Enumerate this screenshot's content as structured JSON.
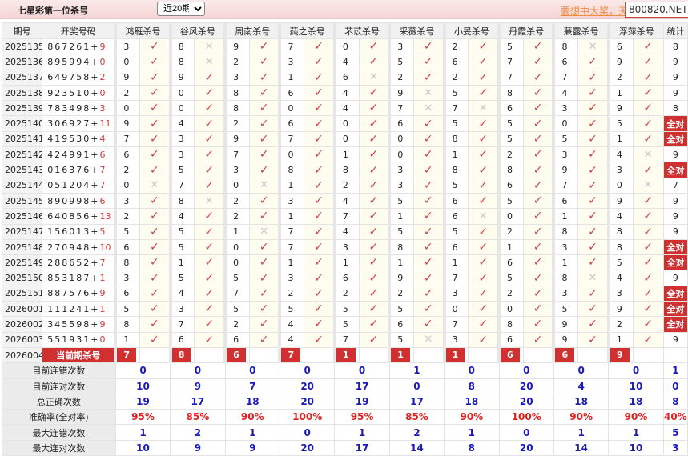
{
  "header": {
    "title": "七星彩第一位杀号",
    "period_select": "近20期",
    "promo": "要想中大奖，天",
    "site": "800820.NET"
  },
  "columns": {
    "issue": "期号",
    "draw": "开奖号码",
    "experts": [
      "鸿雁杀号",
      "谷风杀号",
      "周南杀号",
      "莼之杀号",
      "芣苡杀号",
      "采薇杀号",
      "小旻杀号",
      "丹霞杀号",
      "蒹露杀号",
      "浮萍杀号"
    ],
    "stats": "统计"
  },
  "rows": [
    {
      "issue": "2025135",
      "draw": "867261",
      "special": "9",
      "picks": [
        [
          3,
          1
        ],
        [
          8,
          0
        ],
        [
          9,
          1
        ],
        [
          7,
          1
        ],
        [
          0,
          1
        ],
        [
          3,
          1
        ],
        [
          2,
          1
        ],
        [
          5,
          1
        ],
        [
          8,
          0
        ],
        [
          6,
          1
        ]
      ],
      "stat": "8"
    },
    {
      "issue": "2025136",
      "draw": "895994",
      "special": "0",
      "picks": [
        [
          0,
          1
        ],
        [
          8,
          0
        ],
        [
          2,
          1
        ],
        [
          3,
          1
        ],
        [
          4,
          1
        ],
        [
          5,
          1
        ],
        [
          6,
          1
        ],
        [
          7,
          1
        ],
        [
          6,
          1
        ],
        [
          9,
          1
        ]
      ],
      "stat": "9"
    },
    {
      "issue": "2025137",
      "draw": "649758",
      "special": "2",
      "picks": [
        [
          9,
          1
        ],
        [
          9,
          1
        ],
        [
          3,
          1
        ],
        [
          1,
          1
        ],
        [
          6,
          0
        ],
        [
          2,
          1
        ],
        [
          2,
          1
        ],
        [
          7,
          1
        ],
        [
          7,
          1
        ],
        [
          2,
          1
        ]
      ],
      "stat": "9"
    },
    {
      "issue": "2025138",
      "draw": "923510",
      "special": "0",
      "picks": [
        [
          2,
          1
        ],
        [
          0,
          1
        ],
        [
          8,
          1
        ],
        [
          6,
          1
        ],
        [
          4,
          1
        ],
        [
          9,
          0
        ],
        [
          5,
          1
        ],
        [
          8,
          1
        ],
        [
          4,
          1
        ],
        [
          1,
          1
        ]
      ],
      "stat": "9"
    },
    {
      "issue": "2025139",
      "draw": "783498",
      "special": "3",
      "picks": [
        [
          0,
          1
        ],
        [
          0,
          1
        ],
        [
          8,
          1
        ],
        [
          0,
          1
        ],
        [
          4,
          1
        ],
        [
          7,
          0
        ],
        [
          7,
          0
        ],
        [
          6,
          1
        ],
        [
          3,
          1
        ],
        [
          9,
          1
        ]
      ],
      "stat": "8"
    },
    {
      "issue": "2025140",
      "draw": "306927",
      "special": "11",
      "picks": [
        [
          9,
          1
        ],
        [
          4,
          1
        ],
        [
          2,
          1
        ],
        [
          6,
          1
        ],
        [
          0,
          1
        ],
        [
          6,
          1
        ],
        [
          5,
          1
        ],
        [
          5,
          1
        ],
        [
          0,
          1
        ],
        [
          5,
          1
        ]
      ],
      "stat": "全对"
    },
    {
      "issue": "2025141",
      "draw": "419530",
      "special": "4",
      "picks": [
        [
          7,
          1
        ],
        [
          3,
          1
        ],
        [
          9,
          1
        ],
        [
          7,
          1
        ],
        [
          0,
          1
        ],
        [
          0,
          1
        ],
        [
          8,
          1
        ],
        [
          5,
          1
        ],
        [
          5,
          1
        ],
        [
          1,
          1
        ]
      ],
      "stat": "全对"
    },
    {
      "issue": "2025142",
      "draw": "424991",
      "special": "6",
      "picks": [
        [
          6,
          1
        ],
        [
          3,
          1
        ],
        [
          7,
          1
        ],
        [
          0,
          1
        ],
        [
          1,
          1
        ],
        [
          0,
          1
        ],
        [
          1,
          1
        ],
        [
          2,
          1
        ],
        [
          3,
          1
        ],
        [
          4,
          0
        ]
      ],
      "stat": "9"
    },
    {
      "issue": "2025143",
      "draw": "016376",
      "special": "7",
      "picks": [
        [
          2,
          1
        ],
        [
          5,
          1
        ],
        [
          3,
          1
        ],
        [
          8,
          1
        ],
        [
          8,
          1
        ],
        [
          3,
          1
        ],
        [
          8,
          1
        ],
        [
          8,
          1
        ],
        [
          9,
          1
        ],
        [
          3,
          1
        ]
      ],
      "stat": "全对"
    },
    {
      "issue": "2025144",
      "draw": "051204",
      "special": "7",
      "picks": [
        [
          0,
          0
        ],
        [
          7,
          1
        ],
        [
          0,
          0
        ],
        [
          1,
          1
        ],
        [
          2,
          1
        ],
        [
          3,
          1
        ],
        [
          5,
          1
        ],
        [
          6,
          1
        ],
        [
          7,
          1
        ],
        [
          0,
          0
        ]
      ],
      "stat": "7"
    },
    {
      "issue": "2025145",
      "draw": "890998",
      "special": "6",
      "picks": [
        [
          3,
          1
        ],
        [
          8,
          0
        ],
        [
          2,
          1
        ],
        [
          3,
          1
        ],
        [
          4,
          1
        ],
        [
          5,
          1
        ],
        [
          6,
          1
        ],
        [
          5,
          1
        ],
        [
          6,
          1
        ],
        [
          9,
          1
        ]
      ],
      "stat": "9"
    },
    {
      "issue": "2025146",
      "draw": "640856",
      "special": "13",
      "picks": [
        [
          2,
          1
        ],
        [
          4,
          1
        ],
        [
          2,
          1
        ],
        [
          1,
          1
        ],
        [
          7,
          1
        ],
        [
          1,
          1
        ],
        [
          6,
          0
        ],
        [
          0,
          1
        ],
        [
          1,
          1
        ],
        [
          4,
          1
        ]
      ],
      "stat": "9"
    },
    {
      "issue": "2025147",
      "draw": "156013",
      "special": "5",
      "picks": [
        [
          5,
          1
        ],
        [
          5,
          1
        ],
        [
          1,
          0
        ],
        [
          7,
          1
        ],
        [
          4,
          1
        ],
        [
          5,
          1
        ],
        [
          5,
          1
        ],
        [
          2,
          1
        ],
        [
          8,
          1
        ],
        [
          8,
          1
        ]
      ],
      "stat": "9"
    },
    {
      "issue": "2025148",
      "draw": "270948",
      "special": "10",
      "picks": [
        [
          6,
          1
        ],
        [
          5,
          1
        ],
        [
          0,
          1
        ],
        [
          7,
          1
        ],
        [
          3,
          1
        ],
        [
          8,
          1
        ],
        [
          6,
          1
        ],
        [
          1,
          1
        ],
        [
          3,
          1
        ],
        [
          8,
          1
        ]
      ],
      "stat": "全对"
    },
    {
      "issue": "2025149",
      "draw": "288652",
      "special": "7",
      "picks": [
        [
          8,
          1
        ],
        [
          1,
          1
        ],
        [
          0,
          1
        ],
        [
          1,
          1
        ],
        [
          1,
          1
        ],
        [
          1,
          1
        ],
        [
          1,
          1
        ],
        [
          6,
          1
        ],
        [
          1,
          1
        ],
        [
          5,
          1
        ]
      ],
      "stat": "全对"
    },
    {
      "issue": "2025150",
      "draw": "853187",
      "special": "1",
      "picks": [
        [
          3,
          1
        ],
        [
          5,
          1
        ],
        [
          5,
          1
        ],
        [
          3,
          1
        ],
        [
          6,
          1
        ],
        [
          9,
          1
        ],
        [
          7,
          1
        ],
        [
          5,
          1
        ],
        [
          8,
          0
        ],
        [
          4,
          1
        ]
      ],
      "stat": "9"
    },
    {
      "issue": "2025151",
      "draw": "887576",
      "special": "9",
      "picks": [
        [
          6,
          1
        ],
        [
          4,
          1
        ],
        [
          7,
          1
        ],
        [
          2,
          1
        ],
        [
          2,
          1
        ],
        [
          2,
          1
        ],
        [
          3,
          1
        ],
        [
          2,
          1
        ],
        [
          3,
          1
        ],
        [
          3,
          1
        ]
      ],
      "stat": "全对"
    },
    {
      "issue": "2026001",
      "draw": "111241",
      "special": "1",
      "picks": [
        [
          5,
          1
        ],
        [
          3,
          1
        ],
        [
          5,
          1
        ],
        [
          5,
          1
        ],
        [
          5,
          1
        ],
        [
          5,
          1
        ],
        [
          0,
          1
        ],
        [
          0,
          1
        ],
        [
          5,
          1
        ],
        [
          9,
          1
        ]
      ],
      "stat": "全对"
    },
    {
      "issue": "2026002",
      "draw": "345598",
      "special": "9",
      "picks": [
        [
          8,
          1
        ],
        [
          7,
          1
        ],
        [
          2,
          1
        ],
        [
          4,
          1
        ],
        [
          5,
          1
        ],
        [
          6,
          1
        ],
        [
          7,
          1
        ],
        [
          8,
          1
        ],
        [
          9,
          1
        ],
        [
          2,
          1
        ]
      ],
      "stat": "全对"
    },
    {
      "issue": "2026003",
      "draw": "551931",
      "special": "0",
      "picks": [
        [
          1,
          1
        ],
        [
          6,
          1
        ],
        [
          6,
          1
        ],
        [
          4,
          1
        ],
        [
          7,
          1
        ],
        [
          5,
          0
        ],
        [
          3,
          1
        ],
        [
          6,
          1
        ],
        [
          9,
          1
        ],
        [
          1,
          1
        ]
      ],
      "stat": "9"
    }
  ],
  "current": {
    "issue": "2026004",
    "label": "当前期杀号",
    "picks": [
      "7",
      "8",
      "6",
      "7",
      "1",
      "1",
      "1",
      "6",
      "6",
      "9"
    ]
  },
  "stats": [
    {
      "label": "目前连错次数",
      "values": [
        "0",
        "0",
        "0",
        "0",
        "0",
        "1",
        "0",
        "0",
        "0",
        "0"
      ],
      "total": "1"
    },
    {
      "label": "目前连对次数",
      "values": [
        "10",
        "9",
        "7",
        "20",
        "17",
        "0",
        "8",
        "20",
        "4",
        "10"
      ],
      "total": "0"
    },
    {
      "label": "总正确次数",
      "values": [
        "19",
        "17",
        "18",
        "20",
        "19",
        "17",
        "18",
        "20",
        "18",
        "18"
      ],
      "total": "8"
    },
    {
      "label": "准确率(全对率)",
      "values": [
        "95%",
        "85%",
        "90%",
        "100%",
        "95%",
        "85%",
        "90%",
        "100%",
        "90%",
        "90%"
      ],
      "total": "40%",
      "pct": true
    },
    {
      "label": "最大连错次数",
      "values": [
        "1",
        "2",
        "1",
        "0",
        "1",
        "2",
        "1",
        "0",
        "1",
        "1"
      ],
      "total": "5"
    },
    {
      "label": "最大连对次数",
      "values": [
        "10",
        "9",
        "9",
        "20",
        "17",
        "14",
        "8",
        "20",
        "14",
        "10"
      ],
      "total": "3"
    }
  ],
  "marks": {
    "ok": "✓",
    "wrong": "✕"
  },
  "colors": {
    "accent": "#d03030",
    "check": "#d0404a",
    "stat_value": "#1a1ab8",
    "pct": "#e02020"
  }
}
